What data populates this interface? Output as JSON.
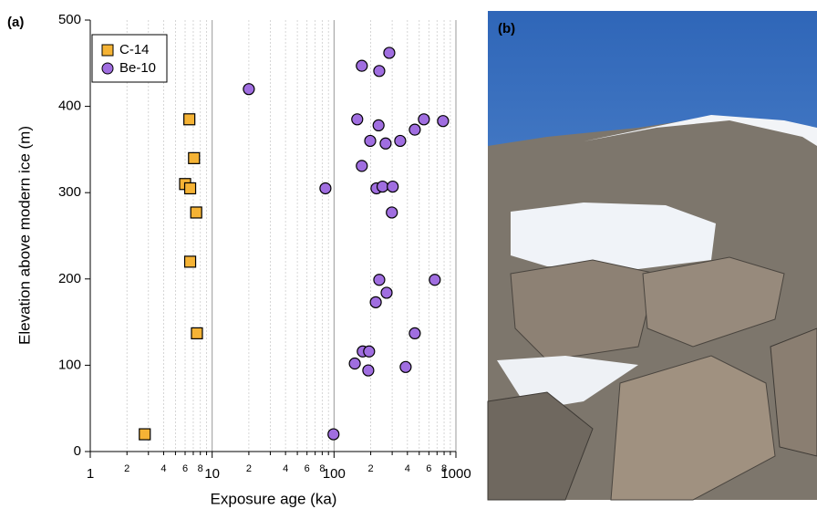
{
  "chart_data": {
    "type": "scatter",
    "panel_label": "(a)",
    "xlabel": "Exposure age (ka)",
    "ylabel": "Elevation above modern ice (m)",
    "xscale": "log",
    "grid": "x",
    "legend": "upper left",
    "xlim": [
      1,
      1000
    ],
    "ylim": [
      0,
      500
    ],
    "xticks": [
      1,
      2,
      {
        "value": 3,
        "label": null
      },
      4,
      {
        "value": 5,
        "label": null
      },
      6,
      {
        "value": 7,
        "label": null
      },
      8,
      {
        "value": 9,
        "label": null
      },
      10,
      {
        "value": 20,
        "label": "2"
      },
      {
        "value": 30,
        "label": null
      },
      {
        "value": 40,
        "label": "4"
      },
      {
        "value": 50,
        "label": null
      },
      {
        "value": 60,
        "label": "6"
      },
      {
        "value": 70,
        "label": null
      },
      {
        "value": 80,
        "label": "8"
      },
      {
        "value": 90,
        "label": null
      },
      100,
      {
        "value": 200,
        "label": "2"
      },
      {
        "value": 300,
        "label": null
      },
      {
        "value": 400,
        "label": "4"
      },
      {
        "value": 500,
        "label": null
      },
      {
        "value": 600,
        "label": "6"
      },
      {
        "value": 700,
        "label": null
      },
      {
        "value": 800,
        "label": "8"
      },
      {
        "value": 900,
        "label": null
      },
      1000
    ],
    "yticks": [
      0,
      100,
      200,
      300,
      400,
      500
    ],
    "series": [
      {
        "name": "C-14",
        "marker": "square",
        "color": "#f5b335",
        "x": [
          2.8,
          6.5,
          7.1,
          6.0,
          6.6,
          7.4,
          6.6,
          7.5
        ],
        "values": [
          20,
          385,
          340,
          310,
          305,
          277,
          220,
          137
        ]
      },
      {
        "name": "Be-10",
        "marker": "circle",
        "color": "#a06ee0",
        "x": [
          99,
          20,
          284,
          169,
          235,
          155,
          232,
          546,
          784,
          460,
          198,
          265,
          349,
          169,
          85,
          223,
          250,
          303,
          298,
          235,
          671,
          270,
          220,
          460,
          172,
          194,
          148,
          191,
          387
        ],
        "values": [
          20,
          420,
          462,
          447,
          441,
          385,
          378,
          385,
          383,
          373,
          360,
          357,
          360,
          331,
          305,
          305,
          307,
          307,
          277,
          199,
          199,
          184,
          173,
          137,
          116,
          116,
          102,
          94,
          98
        ]
      }
    ]
  },
  "photo": {
    "label": "(b)"
  }
}
